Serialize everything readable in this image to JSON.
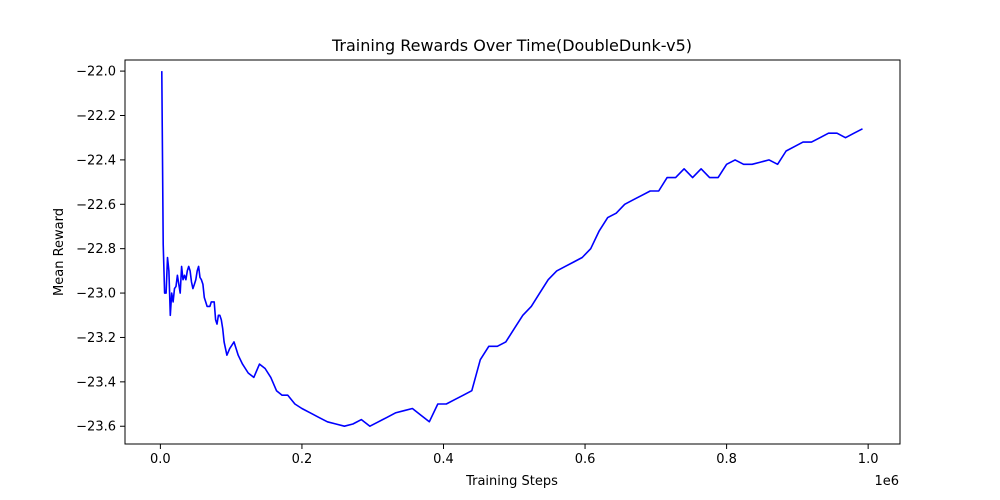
{
  "chart_data": {
    "type": "line",
    "title": "Training Rewards Over Time(DoubleDunk-v5)",
    "xlabel": "Training Steps",
    "ylabel": "Mean Reward",
    "x_offset_text": "1e6",
    "xlim": [
      -0.05,
      1.045
    ],
    "ylim": [
      -23.68,
      -21.95
    ],
    "x_ticks": [
      0.0,
      0.2,
      0.4,
      0.6,
      0.8,
      1.0
    ],
    "x_tick_labels": [
      "0.0",
      "0.2",
      "0.4",
      "0.6",
      "0.8",
      "1.0"
    ],
    "y_ticks": [
      -22.0,
      -22.2,
      -22.4,
      -22.6,
      -22.8,
      -23.0,
      -23.2,
      -23.4,
      -23.6
    ],
    "y_tick_labels": [
      "−22.0",
      "−22.2",
      "−22.4",
      "−22.6",
      "−22.8",
      "−23.0",
      "−23.2",
      "−23.4",
      "−23.6"
    ],
    "grid": false,
    "series": [
      {
        "color": "#0000ff",
        "x": [
          0.002,
          0.004,
          0.006,
          0.008,
          0.01,
          0.012,
          0.014,
          0.016,
          0.018,
          0.02,
          0.022,
          0.024,
          0.026,
          0.028,
          0.03,
          0.032,
          0.034,
          0.036,
          0.038,
          0.04,
          0.042,
          0.044,
          0.046,
          0.048,
          0.05,
          0.052,
          0.054,
          0.056,
          0.058,
          0.06,
          0.062,
          0.064,
          0.066,
          0.068,
          0.07,
          0.072,
          0.074,
          0.076,
          0.078,
          0.08,
          0.082,
          0.084,
          0.086,
          0.088,
          0.09,
          0.094,
          0.098,
          0.104,
          0.11,
          0.116,
          0.124,
          0.132,
          0.14,
          0.148,
          0.156,
          0.164,
          0.172,
          0.18,
          0.19,
          0.2,
          0.212,
          0.224,
          0.236,
          0.248,
          0.26,
          0.272,
          0.284,
          0.296,
          0.308,
          0.32,
          0.332,
          0.344,
          0.356,
          0.368,
          0.38,
          0.392,
          0.404,
          0.416,
          0.428,
          0.44,
          0.452,
          0.464,
          0.476,
          0.488,
          0.5,
          0.512,
          0.524,
          0.536,
          0.548,
          0.56,
          0.572,
          0.584,
          0.596,
          0.608,
          0.62,
          0.632,
          0.644,
          0.656,
          0.668,
          0.68,
          0.692,
          0.704,
          0.716,
          0.728,
          0.74,
          0.752,
          0.764,
          0.776,
          0.788,
          0.8,
          0.812,
          0.824,
          0.836,
          0.848,
          0.86,
          0.872,
          0.884,
          0.896,
          0.908,
          0.92,
          0.932,
          0.944,
          0.956,
          0.968,
          0.98,
          0.992
        ],
        "y": [
          -22.0,
          -22.78,
          -23.0,
          -23.0,
          -22.84,
          -22.9,
          -23.1,
          -23.0,
          -23.04,
          -22.98,
          -22.97,
          -22.92,
          -22.96,
          -23.0,
          -22.88,
          -22.94,
          -22.92,
          -22.94,
          -22.9,
          -22.88,
          -22.9,
          -22.95,
          -22.98,
          -22.96,
          -22.94,
          -22.9,
          -22.88,
          -22.93,
          -22.94,
          -22.96,
          -23.02,
          -23.04,
          -23.06,
          -23.06,
          -23.06,
          -23.04,
          -23.04,
          -23.04,
          -23.12,
          -23.14,
          -23.1,
          -23.1,
          -23.12,
          -23.16,
          -23.22,
          -23.28,
          -23.25,
          -23.22,
          -23.28,
          -23.32,
          -23.36,
          -23.38,
          -23.32,
          -23.34,
          -23.38,
          -23.44,
          -23.46,
          -23.46,
          -23.5,
          -23.52,
          -23.54,
          -23.56,
          -23.58,
          -23.59,
          -23.6,
          -23.59,
          -23.57,
          -23.6,
          -23.58,
          -23.56,
          -23.54,
          -23.53,
          -23.52,
          -23.55,
          -23.58,
          -23.5,
          -23.5,
          -23.48,
          -23.46,
          -23.44,
          -23.3,
          -23.24,
          -23.24,
          -23.22,
          -23.16,
          -23.1,
          -23.06,
          -23.0,
          -22.94,
          -22.9,
          -22.88,
          -22.86,
          -22.84,
          -22.8,
          -22.72,
          -22.66,
          -22.64,
          -22.6,
          -22.58,
          -22.56,
          -22.54,
          -22.54,
          -22.48,
          -22.48,
          -22.44,
          -22.48,
          -22.44,
          -22.48,
          -22.48,
          -22.42,
          -22.4,
          -22.42,
          -22.42,
          -22.41,
          -22.4,
          -22.42,
          -22.36,
          -22.34,
          -22.32,
          -22.32,
          -22.3,
          -22.28,
          -22.28,
          -22.3,
          -22.28,
          -22.26
        ]
      }
    ]
  }
}
